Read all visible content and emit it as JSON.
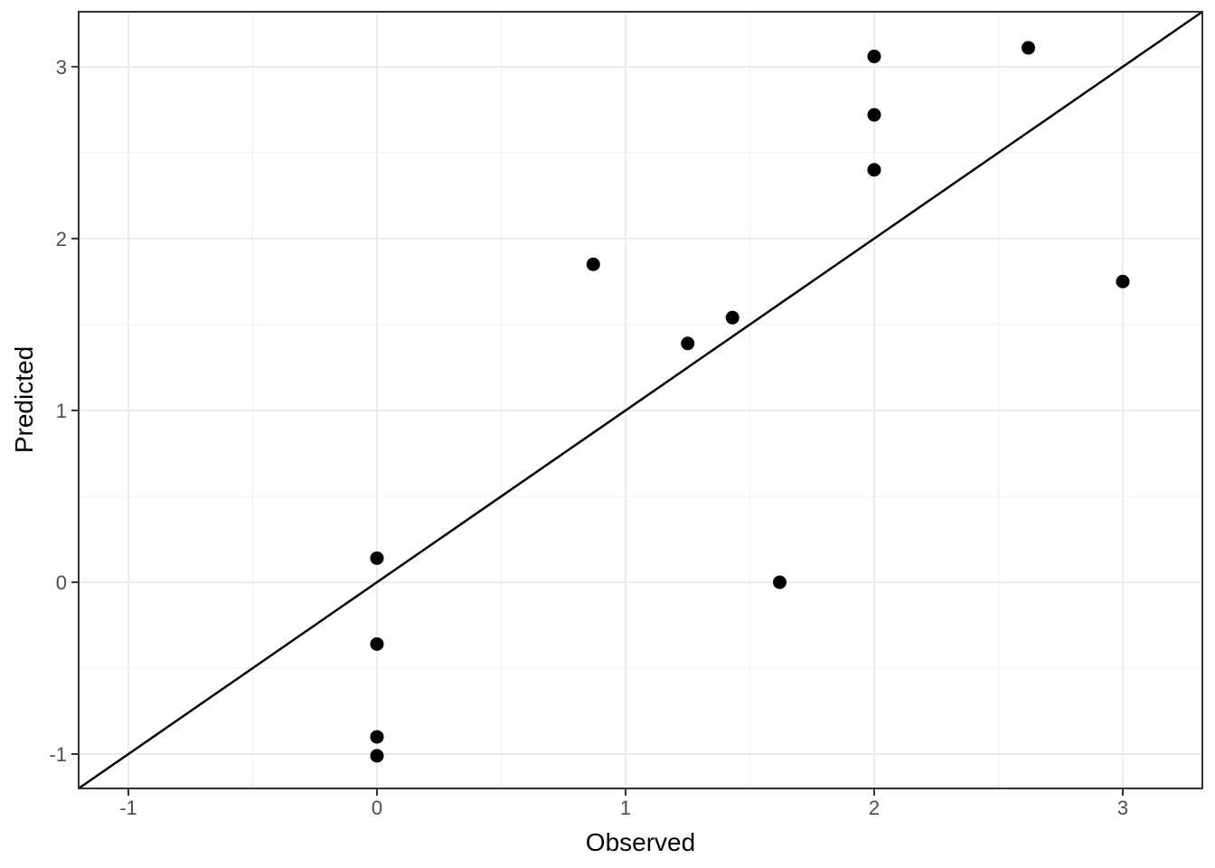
{
  "chart_data": {
    "type": "scatter",
    "title": "",
    "xlabel": "Observed",
    "ylabel": "Predicted",
    "xlim": [
      -1.2,
      3.32
    ],
    "ylim": [
      -1.2,
      3.32
    ],
    "x_ticks": [
      -1,
      0,
      1,
      2,
      3
    ],
    "y_ticks": [
      -1,
      0,
      1,
      2,
      3
    ],
    "x_minor_ticks": [
      -0.5,
      0.5,
      1.5,
      2.5
    ],
    "y_minor_ticks": [
      -0.5,
      0.5,
      1.5,
      2.5
    ],
    "grid": true,
    "legend": "none",
    "reference_line": {
      "type": "identity",
      "slope": 1,
      "intercept": 0
    },
    "points": [
      {
        "x": 2.0,
        "y": 3.06
      },
      {
        "x": 2.62,
        "y": 3.11
      },
      {
        "x": 2.0,
        "y": 2.72
      },
      {
        "x": 2.0,
        "y": 2.4
      },
      {
        "x": 0.87,
        "y": 1.85
      },
      {
        "x": 3.0,
        "y": 1.75
      },
      {
        "x": 1.43,
        "y": 1.54
      },
      {
        "x": 1.25,
        "y": 1.39
      },
      {
        "x": 0.0,
        "y": 0.14
      },
      {
        "x": 1.62,
        "y": 0.0
      },
      {
        "x": 0.0,
        "y": -0.36
      },
      {
        "x": 0.0,
        "y": -0.9
      },
      {
        "x": 0.0,
        "y": -1.01
      }
    ]
  },
  "style": {
    "background": "#ffffff",
    "panel_fill": "#ffffff",
    "panel_border_color": "#333333",
    "grid_major_color": "#ebebeb",
    "grid_minor_color": "#f0f0f0",
    "tick_mark_color": "#333333",
    "tick_label_color": "#4d4d4d",
    "axis_title_color": "#000000",
    "point_color": "#000000",
    "line_color": "#000000"
  }
}
